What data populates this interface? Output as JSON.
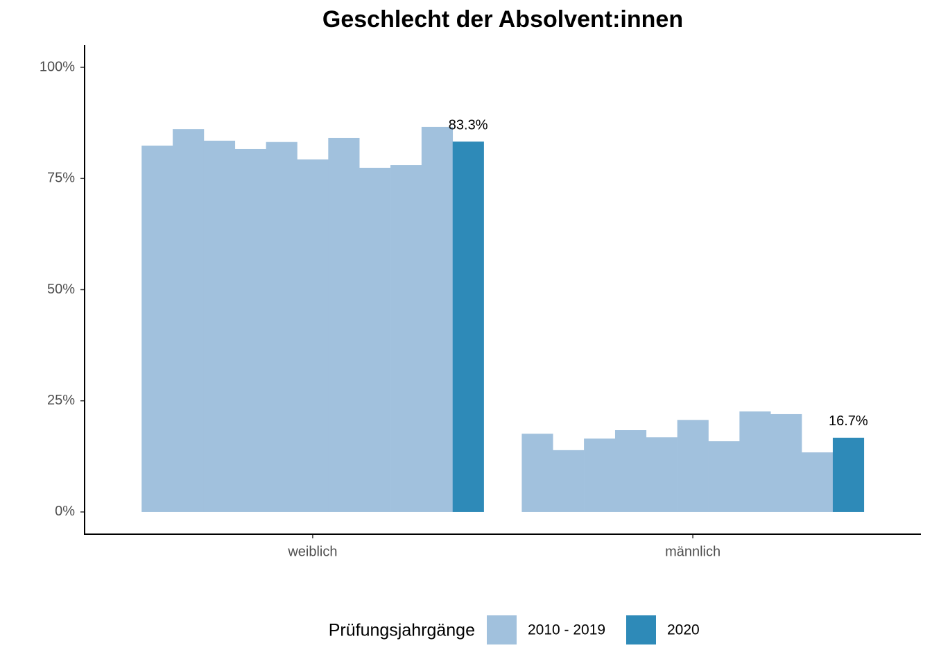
{
  "chart_data": {
    "type": "bar",
    "title": "Geschlecht der Absolvent:innen",
    "categories": [
      "weiblich",
      "männlich"
    ],
    "legend_title": "Prüfungsjahrgänge",
    "series": [
      {
        "name": "2010 - 2019",
        "color": "#a1c1dd",
        "values": [
          [
            82.4,
            86.1,
            83.5,
            81.6,
            83.2,
            79.3,
            84.1,
            77.4,
            78.0,
            86.6
          ],
          [
            17.6,
            13.9,
            16.5,
            18.4,
            16.8,
            20.7,
            15.9,
            22.6,
            22.0,
            13.4
          ]
        ]
      },
      {
        "name": "2020",
        "color": "#2e8ab8",
        "values": [
          83.3,
          16.7
        ],
        "value_labels": [
          "83.3%",
          "16.7%"
        ]
      }
    ],
    "ylim": [
      -5,
      105
    ],
    "yticks": [
      {
        "value": 0,
        "label": "0%"
      },
      {
        "value": 25,
        "label": "25%"
      },
      {
        "value": 50,
        "label": "50%"
      },
      {
        "value": 75,
        "label": "75%"
      },
      {
        "value": 100,
        "label": "100%"
      }
    ],
    "grid": false
  }
}
